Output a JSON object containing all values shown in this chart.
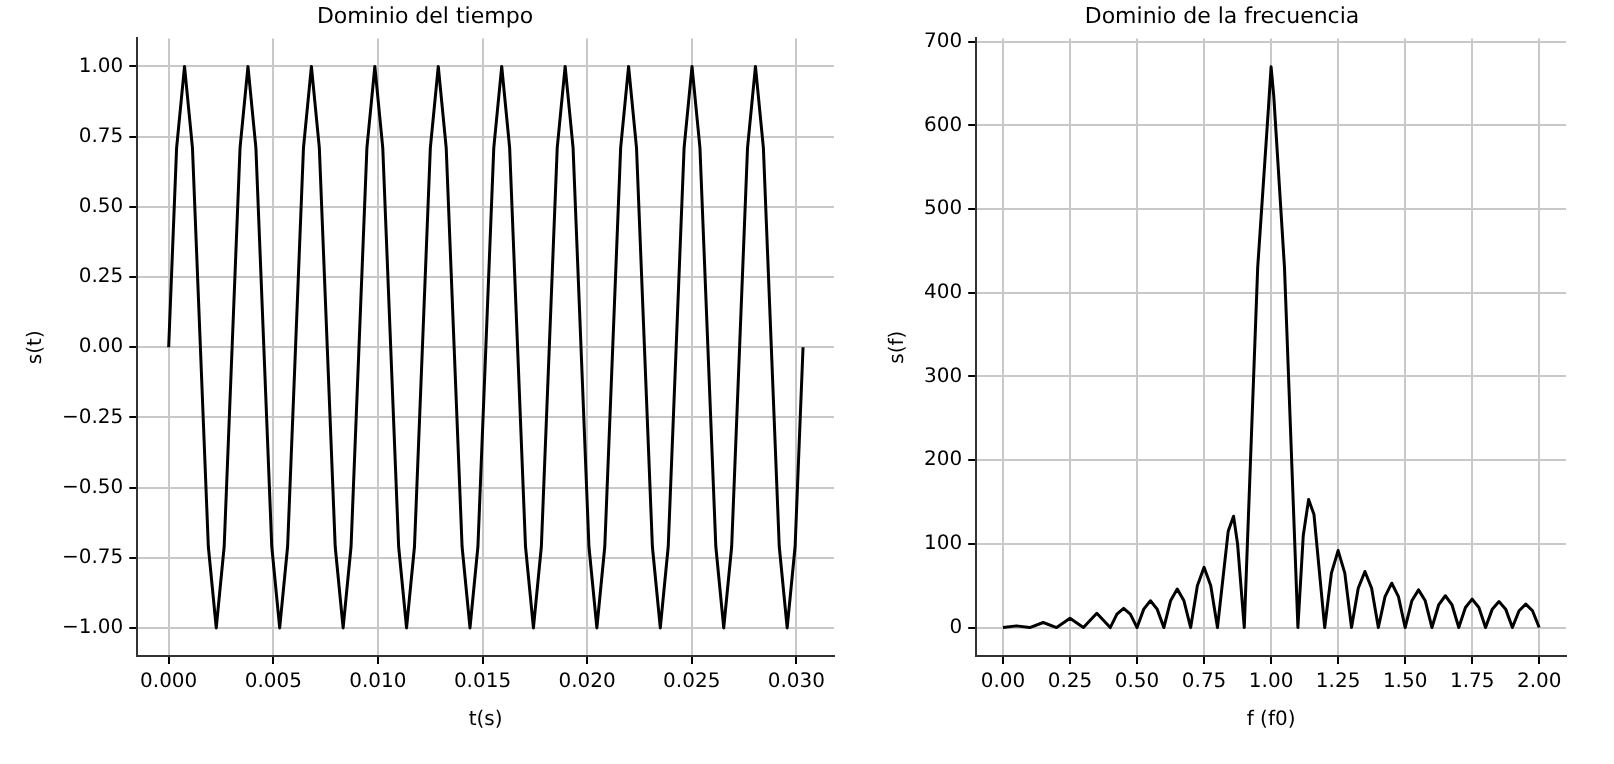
{
  "chart_data": [
    {
      "type": "line",
      "title": "Dominio del tiempo",
      "xlabel": "t(s)",
      "ylabel": "s(t)",
      "grid": true,
      "legend": false,
      "marker": "none",
      "line_style": "solid",
      "xlim": [
        -0.0015,
        0.0318
      ],
      "ylim": [
        -1.1,
        1.1
      ],
      "xticks": [
        {
          "value": 0,
          "label": "0.000"
        },
        {
          "value": 0.005,
          "label": "0.005"
        },
        {
          "value": 0.01,
          "label": "0.010"
        },
        {
          "value": 0.015,
          "label": "0.015"
        },
        {
          "value": 0.02,
          "label": "0.020"
        },
        {
          "value": 0.025,
          "label": "0.025"
        },
        {
          "value": 0.03,
          "label": "0.030"
        }
      ],
      "yticks": [
        {
          "value": -1,
          "label": "−1.00"
        },
        {
          "value": -0.75,
          "label": "−0.75"
        },
        {
          "value": -0.5,
          "label": "−0.50"
        },
        {
          "value": -0.25,
          "label": "−0.25"
        },
        {
          "value": 0,
          "label": "0.00"
        },
        {
          "value": 0.25,
          "label": "0.25"
        },
        {
          "value": 0.5,
          "label": "0.50"
        },
        {
          "value": 0.75,
          "label": "0.75"
        },
        {
          "value": 1,
          "label": "1.00"
        }
      ],
      "series": [
        {
          "color": "#000000",
          "x": [
            0,
            0.000379,
            0.000758,
            0.001137,
            0.001516,
            0.001895,
            0.002274,
            0.002653,
            0.003032,
            0.003411,
            0.00379,
            0.004169,
            0.004548,
            0.004927,
            0.005306,
            0.005685,
            0.006064,
            0.006443,
            0.006822,
            0.007201,
            0.00758,
            0.007959,
            0.008338,
            0.008717,
            0.009096,
            0.009475,
            0.009854,
            0.010233,
            0.010612,
            0.010991,
            0.01137,
            0.011749,
            0.012128,
            0.012507,
            0.012886,
            0.013265,
            0.013644,
            0.014023,
            0.014402,
            0.014781,
            0.01516,
            0.015539,
            0.015918,
            0.016297,
            0.016676,
            0.017055,
            0.017434,
            0.017813,
            0.018192,
            0.018571,
            0.01895,
            0.019329,
            0.019708,
            0.020087,
            0.020466,
            0.020845,
            0.021224,
            0.021603,
            0.021982,
            0.022361,
            0.02274,
            0.023119,
            0.023498,
            0.023877,
            0.024256,
            0.024635,
            0.025014,
            0.025393,
            0.025772,
            0.026151,
            0.02653,
            0.026909,
            0.027288,
            0.027667,
            0.028046,
            0.028425,
            0.028804,
            0.029183,
            0.029562,
            0.029941,
            0.03032
          ],
          "values": [
            0,
            0.71,
            1,
            0.71,
            0,
            -0.71,
            -1,
            -0.71,
            0,
            0.71,
            1,
            0.71,
            0,
            -0.71,
            -1,
            -0.71,
            0,
            0.71,
            1,
            0.71,
            0,
            -0.71,
            -1,
            -0.71,
            0,
            0.71,
            1,
            0.71,
            0,
            -0.71,
            -1,
            -0.71,
            0,
            0.71,
            1,
            0.71,
            0,
            -0.71,
            -1,
            -0.71,
            0,
            0.71,
            1,
            0.71,
            0,
            -0.71,
            -1,
            -0.71,
            0,
            0.71,
            1,
            0.71,
            0,
            -0.71,
            -1,
            -0.71,
            0,
            0.71,
            1,
            0.71,
            0,
            -0.71,
            -1,
            -0.71,
            0,
            0.71,
            1,
            0.71,
            0,
            -0.71,
            -1,
            -0.71,
            0,
            0.71,
            1,
            0.71,
            0,
            -0.71,
            -1,
            -0.71,
            0
          ]
        }
      ]
    },
    {
      "type": "line",
      "title": "Dominio de la frecuencia",
      "xlabel": "f (f0)",
      "ylabel": "s(f)",
      "grid": true,
      "legend": false,
      "marker": "none",
      "line_style": "solid",
      "xlim": [
        -0.1,
        2.1
      ],
      "ylim": [
        -34,
        704
      ],
      "xticks": [
        {
          "value": 0,
          "label": "0.00"
        },
        {
          "value": 0.25,
          "label": "0.25"
        },
        {
          "value": 0.5,
          "label": "0.50"
        },
        {
          "value": 0.75,
          "label": "0.75"
        },
        {
          "value": 1,
          "label": "1.00"
        },
        {
          "value": 1.25,
          "label": "1.25"
        },
        {
          "value": 1.5,
          "label": "1.50"
        },
        {
          "value": 1.75,
          "label": "1.75"
        },
        {
          "value": 2,
          "label": "2.00"
        }
      ],
      "yticks": [
        0,
        100,
        200,
        300,
        400,
        500,
        600,
        700
      ],
      "series": [
        {
          "color": "#000000",
          "x": [
            0,
            0.05,
            0.1,
            0.15,
            0.2,
            0.25,
            0.3,
            0.35,
            0.4,
            0.425,
            0.45,
            0.475,
            0.5,
            0.525,
            0.55,
            0.575,
            0.6,
            0.625,
            0.65,
            0.675,
            0.7,
            0.725,
            0.75,
            0.775,
            0.8,
            0.84,
            0.86,
            0.875,
            0.9,
            0.95,
            0.99,
            1.0,
            1.01,
            1.05,
            1.1,
            1.12,
            1.14,
            1.16,
            1.2,
            1.225,
            1.25,
            1.275,
            1.3,
            1.325,
            1.35,
            1.375,
            1.4,
            1.425,
            1.45,
            1.475,
            1.5,
            1.525,
            1.55,
            1.575,
            1.6,
            1.625,
            1.65,
            1.675,
            1.7,
            1.725,
            1.75,
            1.775,
            1.8,
            1.825,
            1.85,
            1.875,
            1.9,
            1.925,
            1.95,
            1.975,
            2.0
          ],
          "values": [
            0,
            2,
            0,
            6,
            0,
            11,
            0,
            17,
            0,
            16,
            23,
            16,
            0,
            22,
            32,
            22,
            0,
            32,
            46,
            32,
            0,
            50,
            72,
            50,
            0,
            115,
            133,
            100,
            0,
            430,
            620,
            670,
            635,
            430,
            0,
            110,
            153,
            135,
            0,
            65,
            92,
            65,
            0,
            47,
            67,
            47,
            0,
            37,
            53,
            37,
            0,
            32,
            45,
            32,
            0,
            27,
            38,
            27,
            0,
            24,
            34,
            24,
            0,
            22,
            31,
            22,
            0,
            20,
            28,
            20,
            0
          ]
        }
      ]
    }
  ]
}
